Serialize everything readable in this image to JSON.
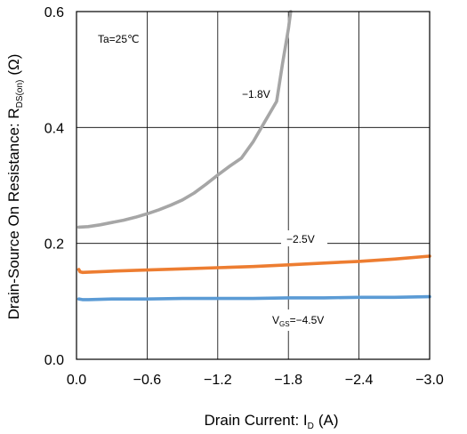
{
  "chart_data": {
    "type": "line",
    "xlabel": {
      "main": "Drain Current: I",
      "sub": "D",
      "unit": "(A)"
    },
    "ylabel": {
      "main": "Drain-Source On Resistance: R",
      "sub": "DS(on)",
      "unit": "(Ω)"
    },
    "xlim": [
      0,
      -3.0
    ],
    "ylim": [
      0,
      0.6
    ],
    "x_ticks": [
      0,
      -0.6,
      -1.2,
      -1.8,
      -2.4,
      -3.0
    ],
    "x_tick_labels": [
      "0.0",
      "−0.6",
      "−1.2",
      "−1.8",
      "−2.4",
      "−3.0"
    ],
    "y_ticks": [
      0,
      0.2,
      0.4,
      0.6
    ],
    "y_tick_labels": [
      "0.0",
      "0.2",
      "0.4",
      "0.6"
    ],
    "grid": true,
    "annotations": {
      "temperature": "Ta=25℃",
      "vgs_18": "−1.8V",
      "vgs_25": "−2.5V",
      "vgs_45_prefix": "V",
      "vgs_45_sub": "GS",
      "vgs_45_value": "=−4.5V"
    },
    "series": [
      {
        "color": "#a6a6a6",
        "x": [
          -0.02,
          -0.1,
          -0.2,
          -0.3,
          -0.4,
          -0.5,
          -0.6,
          -0.7,
          -0.8,
          -0.9,
          -1.0,
          -1.1,
          -1.2,
          -1.3,
          -1.4,
          -1.5,
          -1.6,
          -1.7,
          -1.75,
          -1.8,
          -1.82
        ],
        "y": [
          0.228,
          0.229,
          0.232,
          0.236,
          0.24,
          0.245,
          0.251,
          0.258,
          0.266,
          0.275,
          0.287,
          0.302,
          0.318,
          0.333,
          0.347,
          0.375,
          0.41,
          0.445,
          0.51,
          0.57,
          0.6
        ]
      },
      {
        "color": "#ed7d31",
        "x": [
          -0.02,
          -0.03,
          -0.05,
          -0.3,
          -0.6,
          -0.9,
          -1.2,
          -1.5,
          -1.8,
          -2.1,
          -2.4,
          -2.7,
          -3.0
        ],
        "y": [
          0.155,
          0.151,
          0.15,
          0.152,
          0.154,
          0.156,
          0.158,
          0.16,
          0.163,
          0.166,
          0.169,
          0.173,
          0.178
        ]
      },
      {
        "color": "#5b9bd5",
        "x": [
          -0.02,
          -0.05,
          -0.1,
          -0.3,
          -0.6,
          -0.9,
          -1.2,
          -1.5,
          -1.8,
          -2.1,
          -2.4,
          -2.7,
          -3.0
        ],
        "y": [
          0.104,
          0.103,
          0.103,
          0.104,
          0.104,
          0.105,
          0.105,
          0.105,
          0.106,
          0.106,
          0.107,
          0.107,
          0.108
        ]
      }
    ]
  }
}
